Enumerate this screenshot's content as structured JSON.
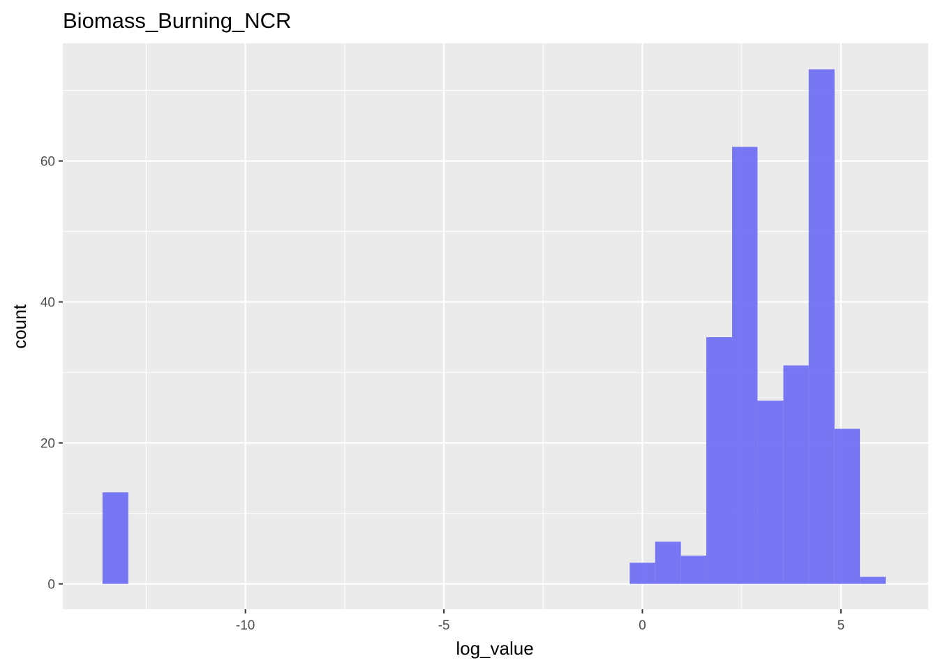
{
  "chart_data": {
    "type": "bar",
    "subtype": "histogram",
    "title": "Biomass_Burning_NCR",
    "xlabel": "log_value",
    "ylabel": "count",
    "xlim": [
      -14.6,
      7.2
    ],
    "ylim": [
      -3.6,
      76.7
    ],
    "x_ticks": [
      -10,
      -5,
      0,
      5
    ],
    "x_tick_labels": [
      "-10",
      "-5",
      "0",
      "5"
    ],
    "y_ticks": [
      0,
      20,
      40,
      60
    ],
    "y_tick_labels": [
      "0",
      "20",
      "40",
      "60"
    ],
    "x_minor_grid": [
      -12.5,
      -7.5,
      -2.5,
      2.5
    ],
    "y_minor_grid": [
      10,
      30,
      50,
      70
    ],
    "bin_width": 0.645,
    "bins": [
      {
        "x0": -13.6,
        "x1": -12.95,
        "count": 13
      },
      {
        "x0": -0.32,
        "x1": 0.32,
        "count": 3
      },
      {
        "x0": 0.32,
        "x1": 0.97,
        "count": 6
      },
      {
        "x0": 0.97,
        "x1": 1.61,
        "count": 4
      },
      {
        "x0": 1.61,
        "x1": 2.26,
        "count": 35
      },
      {
        "x0": 2.26,
        "x1": 2.9,
        "count": 62
      },
      {
        "x0": 2.9,
        "x1": 3.55,
        "count": 26
      },
      {
        "x0": 3.55,
        "x1": 4.19,
        "count": 31
      },
      {
        "x0": 4.19,
        "x1": 4.84,
        "count": 73
      },
      {
        "x0": 4.84,
        "x1": 5.48,
        "count": 22
      },
      {
        "x0": 5.48,
        "x1": 6.13,
        "count": 1
      }
    ],
    "grid": true,
    "legend": "none",
    "colors": {
      "bar_fill": "#6666f5",
      "bar_opacity": 0.88,
      "panel_background": "#ebebeb",
      "grid_major": "#ffffff",
      "grid_minor": "#ffffff",
      "tick_mark": "#333333",
      "tick_label": "#4d4d4d"
    }
  }
}
